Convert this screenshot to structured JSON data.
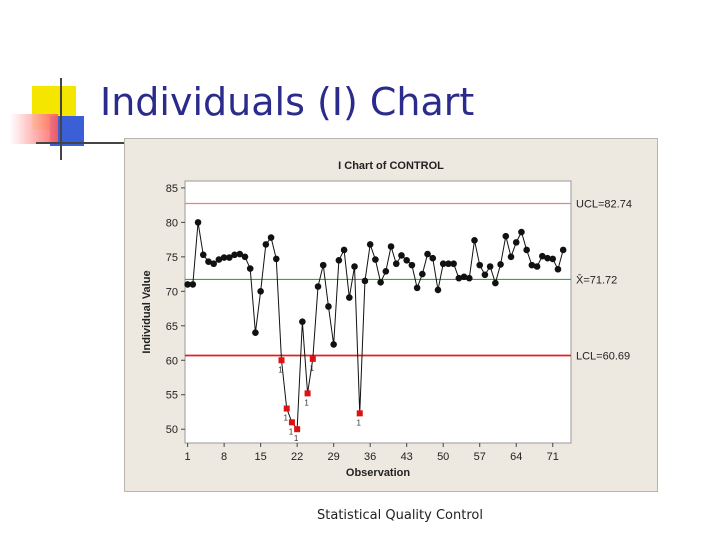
{
  "slide": {
    "title": "Individuals (I) Chart",
    "footer": "Statistical Quality Control"
  },
  "colors": {
    "title": "#2b2b8c",
    "panel_bg": "#ede9e0",
    "plot_bg": "#ffffff",
    "ucl": "#f08080",
    "center": "#33aa33",
    "lcl": "#e02020",
    "point": "#111111",
    "flag_point": "#dd1111"
  },
  "chart_data": {
    "type": "line",
    "title": "I Chart of CONTROL",
    "xlabel": "Observation",
    "ylabel": "Individual Value",
    "xlim": [
      0.5,
      74.5
    ],
    "ylim": [
      48,
      86
    ],
    "xticks": [
      1,
      8,
      15,
      22,
      29,
      36,
      43,
      50,
      57,
      64,
      71
    ],
    "yticks": [
      50,
      55,
      60,
      65,
      70,
      75,
      80,
      85
    ],
    "grid": false,
    "control_lines": {
      "ucl": {
        "value": 82.74,
        "label": "UCL=82.74"
      },
      "center": {
        "value": 71.72,
        "label": "X̄=71.72"
      },
      "lcl": {
        "value": 60.69,
        "label": "LCL=60.69"
      }
    },
    "series": [
      {
        "values": [
          71,
          71,
          80,
          75.3,
          74.3,
          74,
          74.6,
          74.9,
          74.9,
          75.3,
          75.4,
          75,
          73.3,
          64,
          70,
          76.8,
          77.8,
          74.7,
          60,
          53,
          51,
          50,
          65.6,
          55.2,
          60.2,
          70.7,
          73.8,
          67.8,
          62.3,
          74.5,
          76,
          69.1,
          73.6,
          52.3,
          71.5,
          76.8,
          74.6,
          71.3,
          72.9,
          76.5,
          74,
          75.2,
          74.5,
          73.8,
          70.5,
          72.5,
          75.4,
          74.8,
          70.2,
          74,
          74,
          74,
          71.9,
          72.1,
          71.9,
          77.4,
          73.8,
          72.4,
          73.6,
          71.2,
          73.9,
          78,
          75,
          77.1,
          78.6,
          76,
          73.8,
          73.6,
          75.1,
          74.8,
          74.7,
          73.2,
          76
        ]
      }
    ],
    "flagged": [
      {
        "obs": 19,
        "rule": "1"
      },
      {
        "obs": 20,
        "rule": "1"
      },
      {
        "obs": 21,
        "rule": "1"
      },
      {
        "obs": 22,
        "rule": "1"
      },
      {
        "obs": 24,
        "rule": "1"
      },
      {
        "obs": 25,
        "rule": "1"
      },
      {
        "obs": 34,
        "rule": "1"
      }
    ]
  }
}
